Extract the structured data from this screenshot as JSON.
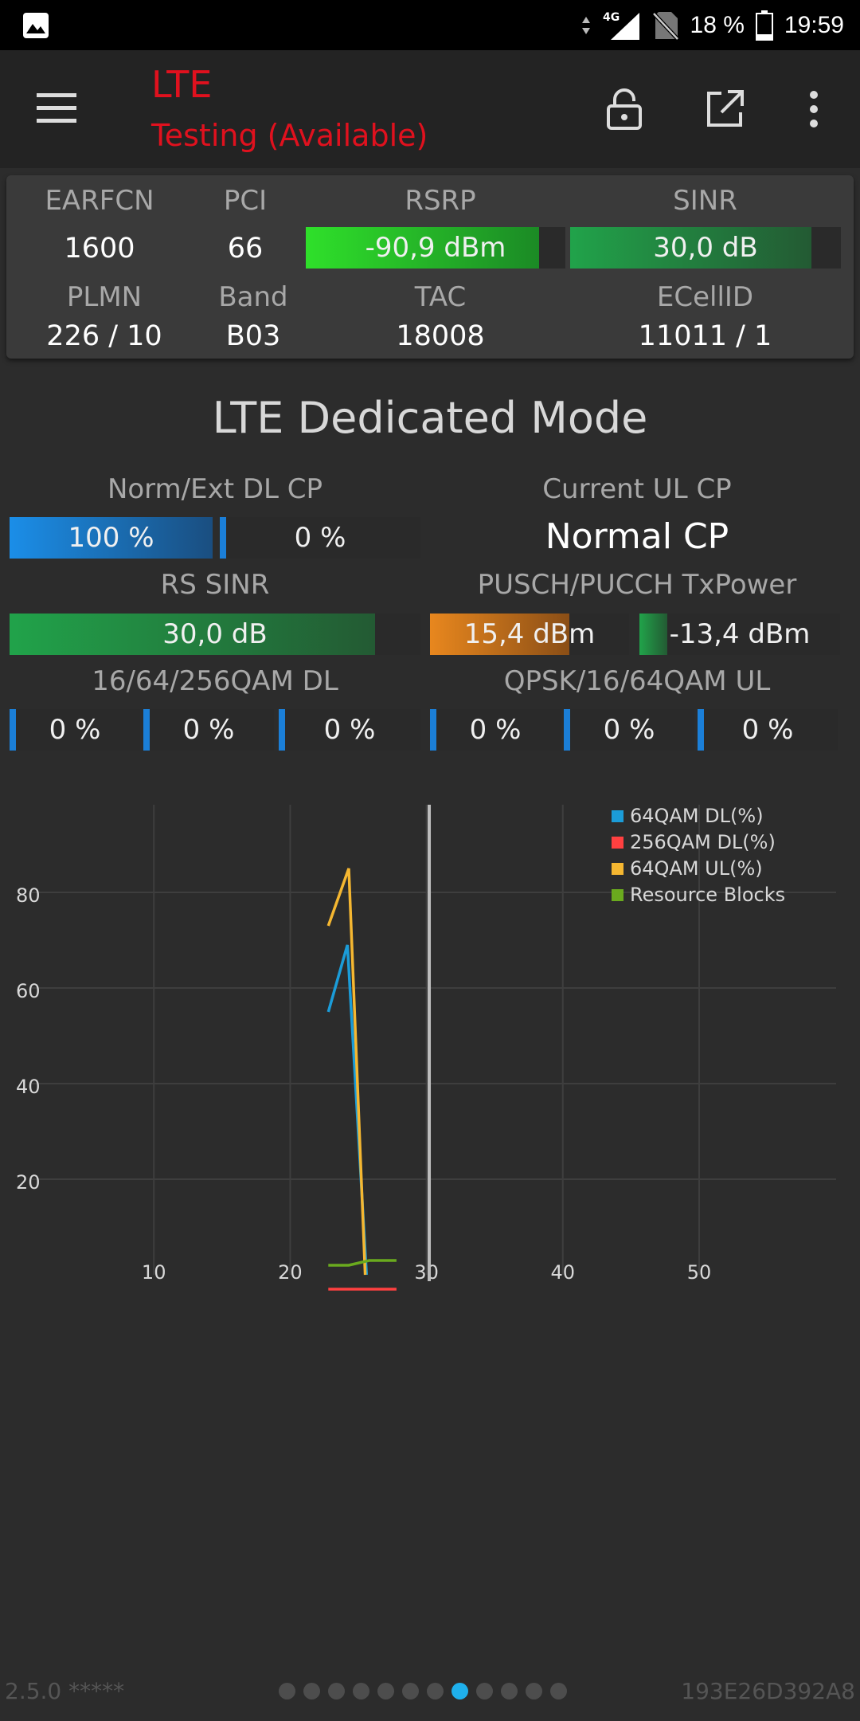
{
  "status_bar": {
    "network": "4G",
    "battery": "18 %",
    "time": "19:59"
  },
  "app_bar": {
    "title": "LTE",
    "subtitle": "Testing (Available)"
  },
  "info": {
    "earfcn": {
      "label": "EARFCN",
      "value": "1600"
    },
    "pci": {
      "label": "PCI",
      "value": "66"
    },
    "rsrp": {
      "label": "RSRP",
      "value": "-90,9 dBm",
      "level": 0.9
    },
    "sinr": {
      "label": "SINR",
      "value": "30,0 dB",
      "level": 0.89
    },
    "plmn": {
      "label": "PLMN",
      "value": "226 / 10"
    },
    "band": {
      "label": "Band",
      "value": "B03"
    },
    "tac": {
      "label": "TAC",
      "value": "18008"
    },
    "ecellid": {
      "label": "ECellID",
      "value": "11011 / 1"
    }
  },
  "mode_title": "LTE Dedicated Mode",
  "dedicated": {
    "norm_ext_dl_cp": {
      "label": "Norm/Ext DL CP",
      "norm": "100 %",
      "norm_level": 1.0,
      "ext": "0 %",
      "ext_level": 0.0
    },
    "current_ul_cp": {
      "label": "Current UL CP",
      "value": "Normal CP"
    },
    "rs_sinr": {
      "label": "RS SINR",
      "value": "30,0 dB",
      "level": 0.89
    },
    "tx_power": {
      "label": "PUSCH/PUCCH TxPower",
      "pusch": "15,4 dBm",
      "pusch_level": 0.7,
      "pucch": "-13,4 dBm",
      "pucch_level": 0.14
    },
    "qam_dl": {
      "label": "16/64/256QAM DL",
      "values": [
        "0 %",
        "0 %",
        "0 %"
      ]
    },
    "qam_ul": {
      "label": "QPSK/16/64QAM UL",
      "values": [
        "0 %",
        "0 %",
        "0 %"
      ]
    }
  },
  "chart_data": {
    "type": "line",
    "x_ticks": [
      10,
      20,
      30,
      40,
      50
    ],
    "y_ticks": [
      20,
      40,
      60,
      80
    ],
    "xlim": [
      0,
      60
    ],
    "ylim": [
      0,
      100
    ],
    "grid": true,
    "legend_position": "top-right",
    "current_marker_x": 30.2,
    "series": [
      {
        "name": "64QAM DL(%)",
        "color": "#1b9cd8",
        "x": [
          22.8,
          24.2,
          25.6
        ],
        "y": [
          55,
          69,
          0
        ]
      },
      {
        "name": "256QAM DL(%)",
        "color": "#ff4040",
        "x": [
          22.8,
          25.6,
          27.8
        ],
        "y": [
          -3,
          -3,
          -3
        ]
      },
      {
        "name": "64QAM UL(%)",
        "color": "#f5b731",
        "x": [
          22.8,
          24.3,
          25.5
        ],
        "y": [
          73,
          85,
          0
        ]
      },
      {
        "name": "Resource Blocks",
        "color": "#6aaa1e",
        "x": [
          22.8,
          24.3,
          25.8,
          27.8
        ],
        "y": [
          2,
          2,
          3,
          3
        ]
      }
    ]
  },
  "footer": {
    "version": "2.5.0 *****",
    "device_id": "193E26D392A8",
    "page_count": 12,
    "active_page": 8
  }
}
